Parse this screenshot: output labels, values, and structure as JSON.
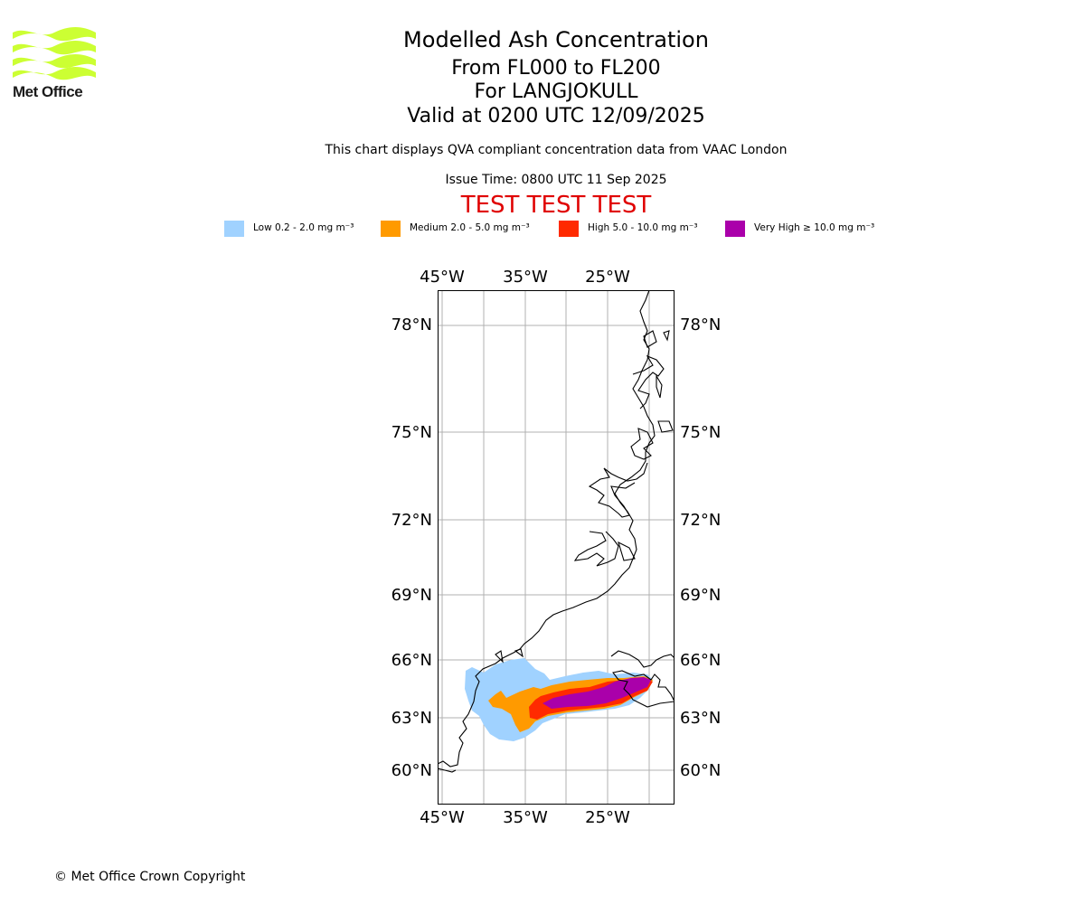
{
  "logo": {
    "text": "Met Office",
    "color": "#ccff33"
  },
  "header": {
    "title": "Modelled Ash Concentration",
    "levels": "From FL000 to FL200",
    "volcano": "For LANGJOKULL",
    "valid": "Valid at 0200 UTC 12/09/2025",
    "description": "This chart displays QVA compliant concentration data from VAAC London",
    "issue_time": "Issue Time: 0800 UTC 11 Sep 2025",
    "test_banner": "TEST TEST TEST"
  },
  "legend": [
    {
      "label": "Low 0.2 - 2.0 mg m⁻³",
      "color": "#a0d2ff"
    },
    {
      "label": "Medium 2.0 - 5.0 mg m⁻³",
      "color": "#ff9a00"
    },
    {
      "label": "High 5.0 - 10.0 mg m⁻³",
      "color": "#ff2a00"
    },
    {
      "label": "Very High ≥ 10.0 mg m⁻³",
      "color": "#aa00aa"
    }
  ],
  "map": {
    "lon_ticks": [
      "45°W",
      "35°W",
      "25°W"
    ],
    "lat_ticks": [
      "78°N",
      "75°N",
      "72°N",
      "69°N",
      "66°N",
      "63°N",
      "60°N"
    ]
  },
  "footer": {
    "copyright": "© Met Office Crown Copyright"
  }
}
